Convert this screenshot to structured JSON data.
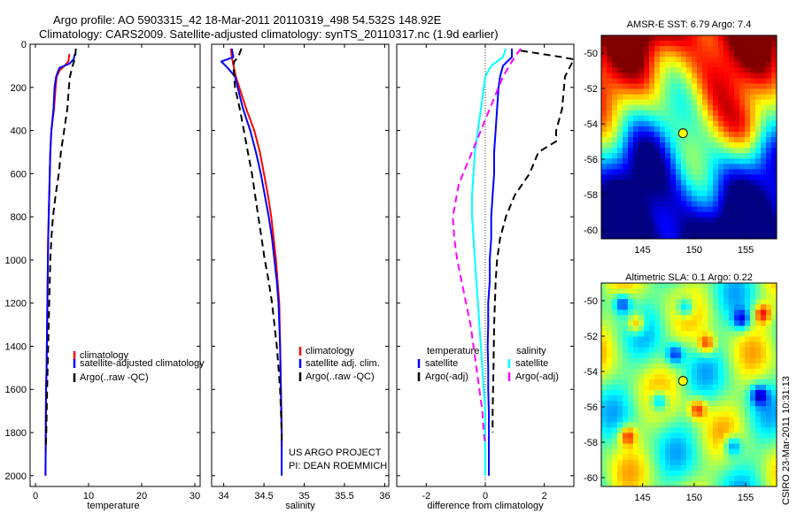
{
  "header": {
    "line1": "Argo profile: AO 5903315_42 18-Mar-2011 20110319_498 54.532S 148.92E",
    "line2": "Climatology: CARS2009. Satellite-adjusted climatology: synTS_20110317.nc (1.9d earlier)"
  },
  "credits": {
    "project": "US ARGO PROJECT",
    "pi": "PI: DEAN ROEMMICH",
    "csiro": "CSIRO 23-Mar-2011 10:31:13"
  },
  "colors": {
    "climatology": "#ff0000",
    "satellite": "#0000ff",
    "argo": "#000000",
    "salinity_satellite": "#00ffff",
    "salinity_argo": "#ff00ff",
    "marker": "#ffff00"
  },
  "chart_data": [
    {
      "id": "temperature",
      "type": "line",
      "xlabel": "temperature",
      "ylabel": "",
      "xlim": [
        -1,
        31
      ],
      "ylim": [
        2050,
        0
      ],
      "xticks": [
        0,
        10,
        20,
        30
      ],
      "yticks": [
        0,
        200,
        400,
        600,
        800,
        1000,
        1200,
        1400,
        1600,
        1800,
        2000
      ],
      "legend": [
        "climatology",
        "satellite-adjusted climatology",
        "Argo(..raw -QC)"
      ],
      "series": [
        {
          "name": "climatology",
          "color": "#ff0000",
          "dash": "",
          "points": [
            [
              6.4,
              45
            ],
            [
              6.2,
              80
            ],
            [
              5.5,
              100
            ],
            [
              4.6,
              120
            ],
            [
              4.0,
              150
            ],
            [
              3.8,
              200
            ],
            [
              3.5,
              300
            ],
            [
              3.0,
              400
            ],
            [
              2.8,
              500
            ],
            [
              2.6,
              700
            ],
            [
              2.4,
              900
            ],
            [
              2.3,
              1100
            ],
            [
              2.2,
              1300
            ],
            [
              2.1,
              1500
            ],
            [
              2.0,
              1600
            ],
            [
              1.95,
              1800
            ],
            [
              1.9,
              2000
            ]
          ]
        },
        {
          "name": "satellite-adjusted climatology",
          "color": "#0000ff",
          "dash": "",
          "points": [
            [
              7.4,
              45
            ],
            [
              7.2,
              70
            ],
            [
              6.4,
              90
            ],
            [
              4.5,
              110
            ],
            [
              3.9,
              150
            ],
            [
              3.6,
              200
            ],
            [
              3.4,
              300
            ],
            [
              3.0,
              400
            ],
            [
              2.8,
              500
            ],
            [
              2.6,
              700
            ],
            [
              2.4,
              900
            ],
            [
              2.3,
              1100
            ],
            [
              2.2,
              1300
            ],
            [
              2.1,
              1500
            ],
            [
              2.0,
              1600
            ],
            [
              1.95,
              1800
            ],
            [
              1.9,
              2000
            ]
          ]
        },
        {
          "name": "Argo(..raw -QC)",
          "color": "#000000",
          "dash": "8,5",
          "points": [
            [
              7.6,
              20
            ],
            [
              7.5,
              60
            ],
            [
              7.0,
              100
            ],
            [
              6.5,
              150
            ],
            [
              6.3,
              200
            ],
            [
              6.0,
              300
            ],
            [
              5.4,
              400
            ],
            [
              4.8,
              500
            ],
            [
              4.4,
              600
            ],
            [
              3.8,
              700
            ],
            [
              3.3,
              800
            ],
            [
              3.0,
              900
            ],
            [
              2.8,
              1000
            ],
            [
              2.6,
              1200
            ],
            [
              2.4,
              1400
            ],
            [
              2.2,
              1600
            ],
            [
              2.05,
              1800
            ],
            [
              1.95,
              1880
            ]
          ]
        }
      ]
    },
    {
      "id": "salinity",
      "type": "line",
      "xlabel": "salinity",
      "ylabel": "",
      "xlim": [
        33.85,
        36.05
      ],
      "ylim": [
        2050,
        0
      ],
      "xticks": [
        34,
        34.5,
        35,
        35.5,
        36
      ],
      "legend": [
        "climatology",
        "satellite adj. clim.",
        "Argo(..raw -QC)"
      ],
      "series": [
        {
          "name": "climatology",
          "color": "#ff0000",
          "dash": "",
          "points": [
            [
              34.09,
              20
            ],
            [
              34.1,
              60
            ],
            [
              34.15,
              150
            ],
            [
              34.28,
              300
            ],
            [
              34.38,
              400
            ],
            [
              34.45,
              500
            ],
            [
              34.5,
              600
            ],
            [
              34.55,
              700
            ],
            [
              34.59,
              800
            ],
            [
              34.62,
              900
            ],
            [
              34.65,
              1000
            ],
            [
              34.67,
              1100
            ],
            [
              34.69,
              1200
            ],
            [
              34.7,
              1400
            ],
            [
              34.71,
              1600
            ],
            [
              34.72,
              1800
            ],
            [
              34.72,
              1880
            ]
          ]
        },
        {
          "name": "satellite adj. clim.",
          "color": "#0000ff",
          "dash": "",
          "points": [
            [
              34.1,
              20
            ],
            [
              34.12,
              60
            ],
            [
              33.97,
              80
            ],
            [
              34.05,
              110
            ],
            [
              34.14,
              150
            ],
            [
              34.24,
              300
            ],
            [
              34.33,
              400
            ],
            [
              34.4,
              500
            ],
            [
              34.46,
              600
            ],
            [
              34.51,
              700
            ],
            [
              34.56,
              800
            ],
            [
              34.6,
              900
            ],
            [
              34.63,
              1000
            ],
            [
              34.66,
              1100
            ],
            [
              34.68,
              1200
            ],
            [
              34.7,
              1400
            ],
            [
              34.71,
              1600
            ],
            [
              34.72,
              1800
            ],
            [
              34.72,
              2000
            ]
          ]
        },
        {
          "name": "Argo(..raw -QC)",
          "color": "#000000",
          "dash": "8,5",
          "points": [
            [
              34.22,
              20
            ],
            [
              34.18,
              60
            ],
            [
              34.13,
              80
            ],
            [
              34.12,
              100
            ],
            [
              34.14,
              200
            ],
            [
              34.2,
              300
            ],
            [
              34.25,
              400
            ],
            [
              34.3,
              500
            ],
            [
              34.35,
              600
            ],
            [
              34.39,
              700
            ],
            [
              34.43,
              800
            ],
            [
              34.47,
              900
            ],
            [
              34.51,
              1000
            ],
            [
              34.56,
              1100
            ],
            [
              34.6,
              1200
            ],
            [
              34.63,
              1300
            ],
            [
              34.66,
              1400
            ],
            [
              34.68,
              1500
            ],
            [
              34.7,
              1600
            ],
            [
              34.71,
              1700
            ],
            [
              34.72,
              1800
            ],
            [
              34.72,
              1860
            ]
          ]
        }
      ]
    },
    {
      "id": "difference",
      "type": "line",
      "xlabel": "difference from climatology",
      "ylabel": "",
      "xlim": [
        -3,
        3
      ],
      "ylim": [
        2050,
        0
      ],
      "xticks": [
        -2,
        0,
        2
      ],
      "legend_groups": [
        {
          "title": "temperature",
          "items": [
            "satellite",
            "Argo(-adj)"
          ]
        },
        {
          "title": "salinity",
          "items": [
            "satellite",
            "Argo(-adj)"
          ]
        }
      ],
      "series": [
        {
          "name": "satellite",
          "group": "temperature",
          "color": "#0000ff",
          "dash": "",
          "points": [
            [
              0.9,
              20
            ],
            [
              0.9,
              60
            ],
            [
              0.6,
              100
            ],
            [
              0.5,
              150
            ],
            [
              0.45,
              200
            ],
            [
              0.4,
              300
            ],
            [
              0.35,
              400
            ],
            [
              0.3,
              500
            ],
            [
              0.3,
              600
            ],
            [
              0.25,
              700
            ],
            [
              0.2,
              800
            ],
            [
              0.2,
              900
            ],
            [
              0.15,
              1000
            ],
            [
              0.15,
              1100
            ],
            [
              0.1,
              1200
            ],
            [
              0.1,
              1300
            ],
            [
              0.08,
              1400
            ],
            [
              0.1,
              1500
            ],
            [
              0.1,
              1600
            ],
            [
              0.12,
              1700
            ],
            [
              0.12,
              1800
            ],
            [
              0.12,
              2000
            ]
          ]
        },
        {
          "name": "Argo(-adj)",
          "group": "temperature",
          "color": "#000000",
          "dash": "8,5",
          "points": [
            [
              1.2,
              30
            ],
            [
              2.6,
              60
            ],
            [
              3.0,
              70
            ],
            [
              2.7,
              150
            ],
            [
              2.6,
              300
            ],
            [
              2.4,
              400
            ],
            [
              2.4,
              450
            ],
            [
              1.8,
              500
            ],
            [
              1.5,
              600
            ],
            [
              1.0,
              700
            ],
            [
              0.7,
              800
            ],
            [
              0.5,
              900
            ],
            [
              0.4,
              1000
            ],
            [
              0.35,
              1100
            ],
            [
              0.3,
              1300
            ],
            [
              0.28,
              1500
            ],
            [
              0.25,
              1700
            ],
            [
              0.25,
              1800
            ]
          ]
        },
        {
          "name": "satellite",
          "group": "salinity",
          "color": "#00ffff",
          "dash": "",
          "points": [
            [
              0.7,
              20
            ],
            [
              0.6,
              60
            ],
            [
              0.2,
              100
            ],
            [
              0.0,
              150
            ],
            [
              -0.1,
              250
            ],
            [
              -0.2,
              350
            ],
            [
              -0.3,
              450
            ],
            [
              -0.35,
              500
            ],
            [
              -0.4,
              600
            ],
            [
              -0.45,
              700
            ],
            [
              -0.45,
              800
            ],
            [
              -0.4,
              900
            ],
            [
              -0.35,
              1000
            ],
            [
              -0.3,
              1100
            ],
            [
              -0.25,
              1200
            ],
            [
              -0.2,
              1300
            ],
            [
              -0.15,
              1400
            ],
            [
              -0.1,
              1500
            ],
            [
              -0.05,
              1600
            ],
            [
              0.0,
              1700
            ],
            [
              0.0,
              1800
            ],
            [
              0.0,
              2000
            ]
          ]
        },
        {
          "name": "Argo(-adj)",
          "group": "salinity",
          "color": "#ff00ff",
          "dash": "8,5",
          "points": [
            [
              1.2,
              20
            ],
            [
              0.9,
              80
            ],
            [
              0.6,
              150
            ],
            [
              0.3,
              250
            ],
            [
              0.0,
              350
            ],
            [
              -0.3,
              450
            ],
            [
              -0.6,
              550
            ],
            [
              -0.9,
              650
            ],
            [
              -1.1,
              800
            ],
            [
              -1.05,
              900
            ],
            [
              -0.95,
              1000
            ],
            [
              -0.8,
              1100
            ],
            [
              -0.65,
              1200
            ],
            [
              -0.5,
              1300
            ],
            [
              -0.4,
              1400
            ],
            [
              -0.3,
              1500
            ],
            [
              -0.2,
              1600
            ],
            [
              -0.1,
              1700
            ],
            [
              -0.05,
              1800
            ],
            [
              0.0,
              1860
            ]
          ]
        }
      ]
    },
    {
      "id": "sst-map",
      "type": "heatmap",
      "title": "AMSR-E SST: 6.79 Argo: 7.4",
      "xlim": [
        141,
        158
      ],
      "ylim": [
        -60.5,
        -49
      ],
      "xticks": [
        145,
        150,
        155
      ],
      "yticks": [
        -50,
        -52,
        -54,
        -56,
        -58,
        -60
      ],
      "marker": {
        "lon": 148.92,
        "lat": -54.532
      }
    },
    {
      "id": "sla-map",
      "type": "heatmap",
      "title": "Altimetric SLA: 0.1 Argo: 0.22",
      "xlim": [
        141,
        158
      ],
      "ylim": [
        -60.5,
        -49
      ],
      "xticks": [
        145,
        150,
        155
      ],
      "yticks": [
        -50,
        -52,
        -54,
        -56,
        -58,
        -60
      ],
      "marker": {
        "lon": 148.92,
        "lat": -54.532
      }
    }
  ]
}
